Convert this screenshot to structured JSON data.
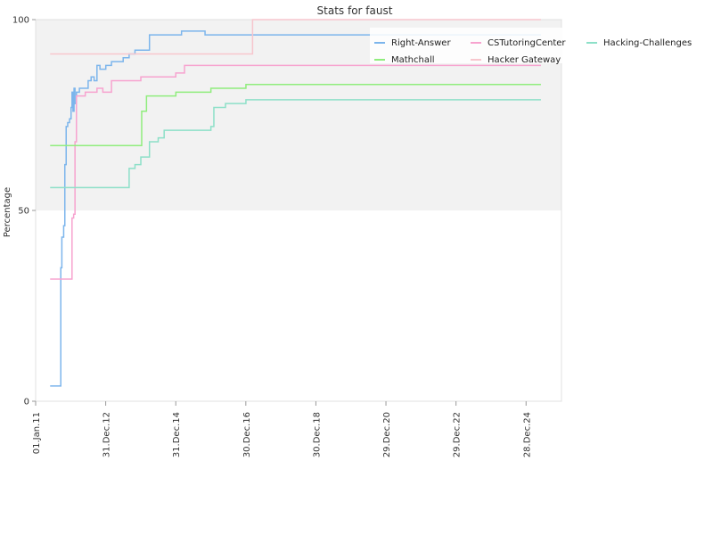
{
  "chart_data": {
    "type": "line",
    "title": "Stats for faust",
    "ylabel": "Percentage",
    "xlabel": "",
    "ylim": [
      0,
      100
    ],
    "xlim": [
      "2011-01-01",
      "2026-01-01"
    ],
    "y_ticks": [
      0,
      50,
      100
    ],
    "x_ticks": [
      {
        "date": "2011-01-01",
        "label": "01.Jan.11"
      },
      {
        "date": "2012-12-31",
        "label": "31.Dec.12"
      },
      {
        "date": "2014-12-31",
        "label": "31.Dec.14"
      },
      {
        "date": "2016-12-30",
        "label": "30.Dec.16"
      },
      {
        "date": "2018-12-30",
        "label": "30.Dec.18"
      },
      {
        "date": "2020-12-29",
        "label": "29.Dec.20"
      },
      {
        "date": "2022-12-29",
        "label": "29.Dec.22"
      },
      {
        "date": "2024-12-28",
        "label": "28.Dec.24"
      }
    ],
    "background_bands": [
      {
        "from": 50,
        "to": 100,
        "color": "#f2f2f2"
      }
    ],
    "grid": false,
    "legend_position": "top-right",
    "series": [
      {
        "name": "Right-Answer",
        "color": "#7cb5ec",
        "points": [
          [
            "2011-06-01",
            4
          ],
          [
            "2011-09-15",
            4
          ],
          [
            "2011-09-20",
            35
          ],
          [
            "2011-10-01",
            43
          ],
          [
            "2011-10-20",
            46
          ],
          [
            "2011-11-01",
            62
          ],
          [
            "2011-11-15",
            72
          ],
          [
            "2011-12-01",
            73
          ],
          [
            "2011-12-20",
            74
          ],
          [
            "2012-01-05",
            77
          ],
          [
            "2012-01-15",
            81
          ],
          [
            "2012-01-25",
            76
          ],
          [
            "2012-02-05",
            82
          ],
          [
            "2012-02-15",
            78
          ],
          [
            "2012-03-01",
            81
          ],
          [
            "2012-04-01",
            82
          ],
          [
            "2012-06-01",
            82
          ],
          [
            "2012-07-01",
            84
          ],
          [
            "2012-08-01",
            85
          ],
          [
            "2012-09-01",
            84
          ],
          [
            "2012-10-01",
            88
          ],
          [
            "2012-11-01",
            87
          ],
          [
            "2013-01-01",
            88
          ],
          [
            "2013-03-01",
            89
          ],
          [
            "2013-05-01",
            89
          ],
          [
            "2013-07-01",
            90
          ],
          [
            "2013-09-01",
            91
          ],
          [
            "2013-11-01",
            92
          ],
          [
            "2014-01-15",
            92
          ],
          [
            "2014-03-01",
            92
          ],
          [
            "2014-04-01",
            96
          ],
          [
            "2014-06-01",
            96
          ],
          [
            "2015-01-01",
            96
          ],
          [
            "2015-03-01",
            97
          ],
          [
            "2015-06-01",
            97
          ],
          [
            "2015-10-01",
            97
          ],
          [
            "2015-11-01",
            96
          ],
          [
            "2016-12-31",
            96
          ],
          [
            "2025-06-01",
            96
          ]
        ]
      },
      {
        "name": "CSTutoringCenter",
        "color": "#f7a3cf",
        "points": [
          [
            "2011-06-01",
            32
          ],
          [
            "2012-01-01",
            32
          ],
          [
            "2012-01-15",
            48
          ],
          [
            "2012-02-01",
            49
          ],
          [
            "2012-02-15",
            68
          ],
          [
            "2012-03-01",
            80
          ],
          [
            "2012-06-01",
            81
          ],
          [
            "2012-09-01",
            81
          ],
          [
            "2012-10-01",
            82
          ],
          [
            "2012-12-01",
            81
          ],
          [
            "2013-03-01",
            84
          ],
          [
            "2013-06-01",
            84
          ],
          [
            "2013-12-01",
            84
          ],
          [
            "2014-01-01",
            85
          ],
          [
            "2014-06-01",
            85
          ],
          [
            "2014-12-31",
            86
          ],
          [
            "2015-03-01",
            86
          ],
          [
            "2015-04-01",
            88
          ],
          [
            "2025-06-01",
            88
          ]
        ]
      },
      {
        "name": "Hacking-Challenges",
        "color": "#8de0c8",
        "points": [
          [
            "2011-06-01",
            56
          ],
          [
            "2013-08-01",
            56
          ],
          [
            "2013-09-01",
            61
          ],
          [
            "2013-11-01",
            62
          ],
          [
            "2014-01-01",
            64
          ],
          [
            "2014-04-01",
            68
          ],
          [
            "2014-07-01",
            69
          ],
          [
            "2014-09-01",
            71
          ],
          [
            "2015-06-01",
            71
          ],
          [
            "2016-01-01",
            72
          ],
          [
            "2016-02-01",
            77
          ],
          [
            "2016-06-01",
            78
          ],
          [
            "2016-12-31",
            79
          ],
          [
            "2025-06-01",
            79
          ]
        ]
      },
      {
        "name": "Mathchall",
        "color": "#90ed7d",
        "points": [
          [
            "2011-06-01",
            67
          ],
          [
            "2014-01-01",
            67
          ],
          [
            "2014-01-10",
            76
          ],
          [
            "2014-03-01",
            80
          ],
          [
            "2015-01-01",
            81
          ],
          [
            "2016-01-01",
            82
          ],
          [
            "2016-12-31",
            83
          ],
          [
            "2025-06-01",
            83
          ]
        ]
      },
      {
        "name": "Hacker Gateway",
        "color": "#f7c6cd",
        "points": [
          [
            "2011-06-01",
            91
          ],
          [
            "2017-03-01",
            91
          ],
          [
            "2017-03-10",
            100
          ],
          [
            "2025-06-01",
            100
          ]
        ]
      }
    ],
    "legend_order": [
      "Right-Answer",
      "CSTutoringCenter",
      "Hacking-Challenges",
      "Mathchall",
      "Hacker Gateway"
    ]
  }
}
